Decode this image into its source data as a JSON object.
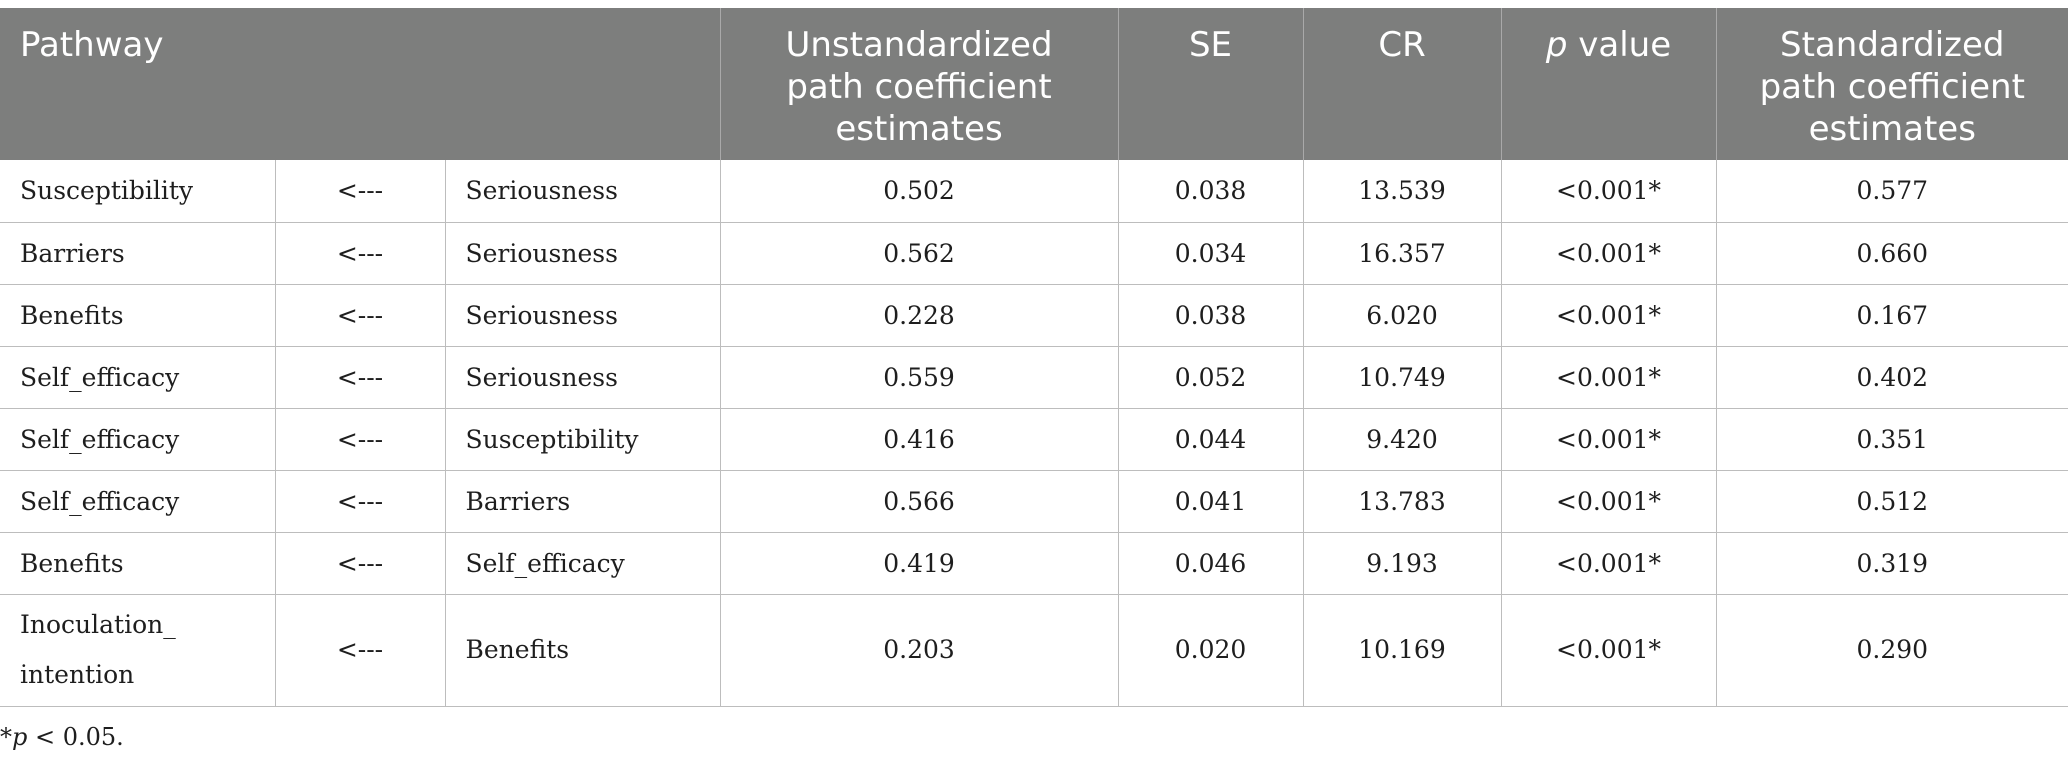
{
  "table": {
    "headers": {
      "pathway": "Pathway",
      "unstd_line1": "Unstandardized",
      "unstd_line2": "path coefficient",
      "unstd_line3": "estimates",
      "se": "SE",
      "cr": "CR",
      "p_italic": "p",
      "p_rest": " value",
      "std_line1": "Standardized",
      "std_line2": "path coefficient",
      "std_line3": "estimates"
    },
    "rows": [
      {
        "from": "Susceptibility",
        "arrow": "<---",
        "to": "Seriousness",
        "unstd": "0.502",
        "se": "0.038",
        "cr": "13.539",
        "p": "<0.001*",
        "std": "0.577"
      },
      {
        "from": "Barriers",
        "arrow": "<---",
        "to": "Seriousness",
        "unstd": "0.562",
        "se": "0.034",
        "cr": "16.357",
        "p": "<0.001*",
        "std": "0.660"
      },
      {
        "from": "Benefits",
        "arrow": "<---",
        "to": "Seriousness",
        "unstd": "0.228",
        "se": "0.038",
        "cr": "6.020",
        "p": "<0.001*",
        "std": "0.167"
      },
      {
        "from": "Self_efficacy",
        "arrow": "<---",
        "to": "Seriousness",
        "unstd": "0.559",
        "se": "0.052",
        "cr": "10.749",
        "p": "<0.001*",
        "std": "0.402"
      },
      {
        "from": "Self_efficacy",
        "arrow": "<---",
        "to": "Susceptibility",
        "unstd": "0.416",
        "se": "0.044",
        "cr": "9.420",
        "p": "<0.001*",
        "std": "0.351"
      },
      {
        "from": "Self_efficacy",
        "arrow": "<---",
        "to": "Barriers",
        "unstd": "0.566",
        "se": "0.041",
        "cr": "13.783",
        "p": "<0.001*",
        "std": "0.512"
      },
      {
        "from": "Benefits",
        "arrow": "<---",
        "to": "Self_efficacy",
        "unstd": "0.419",
        "se": "0.046",
        "cr": "9.193",
        "p": "<0.001*",
        "std": "0.319"
      },
      {
        "from_line1": "Inoculation_",
        "from_line2": "intention",
        "arrow": "<---",
        "to": "Benefits",
        "unstd": "0.203",
        "se": "0.020",
        "cr": "10.169",
        "p": "<0.001*",
        "std": "0.290"
      }
    ]
  },
  "footnote": {
    "star": "*",
    "p_italic": "p",
    "rest": " < 0.05."
  }
}
